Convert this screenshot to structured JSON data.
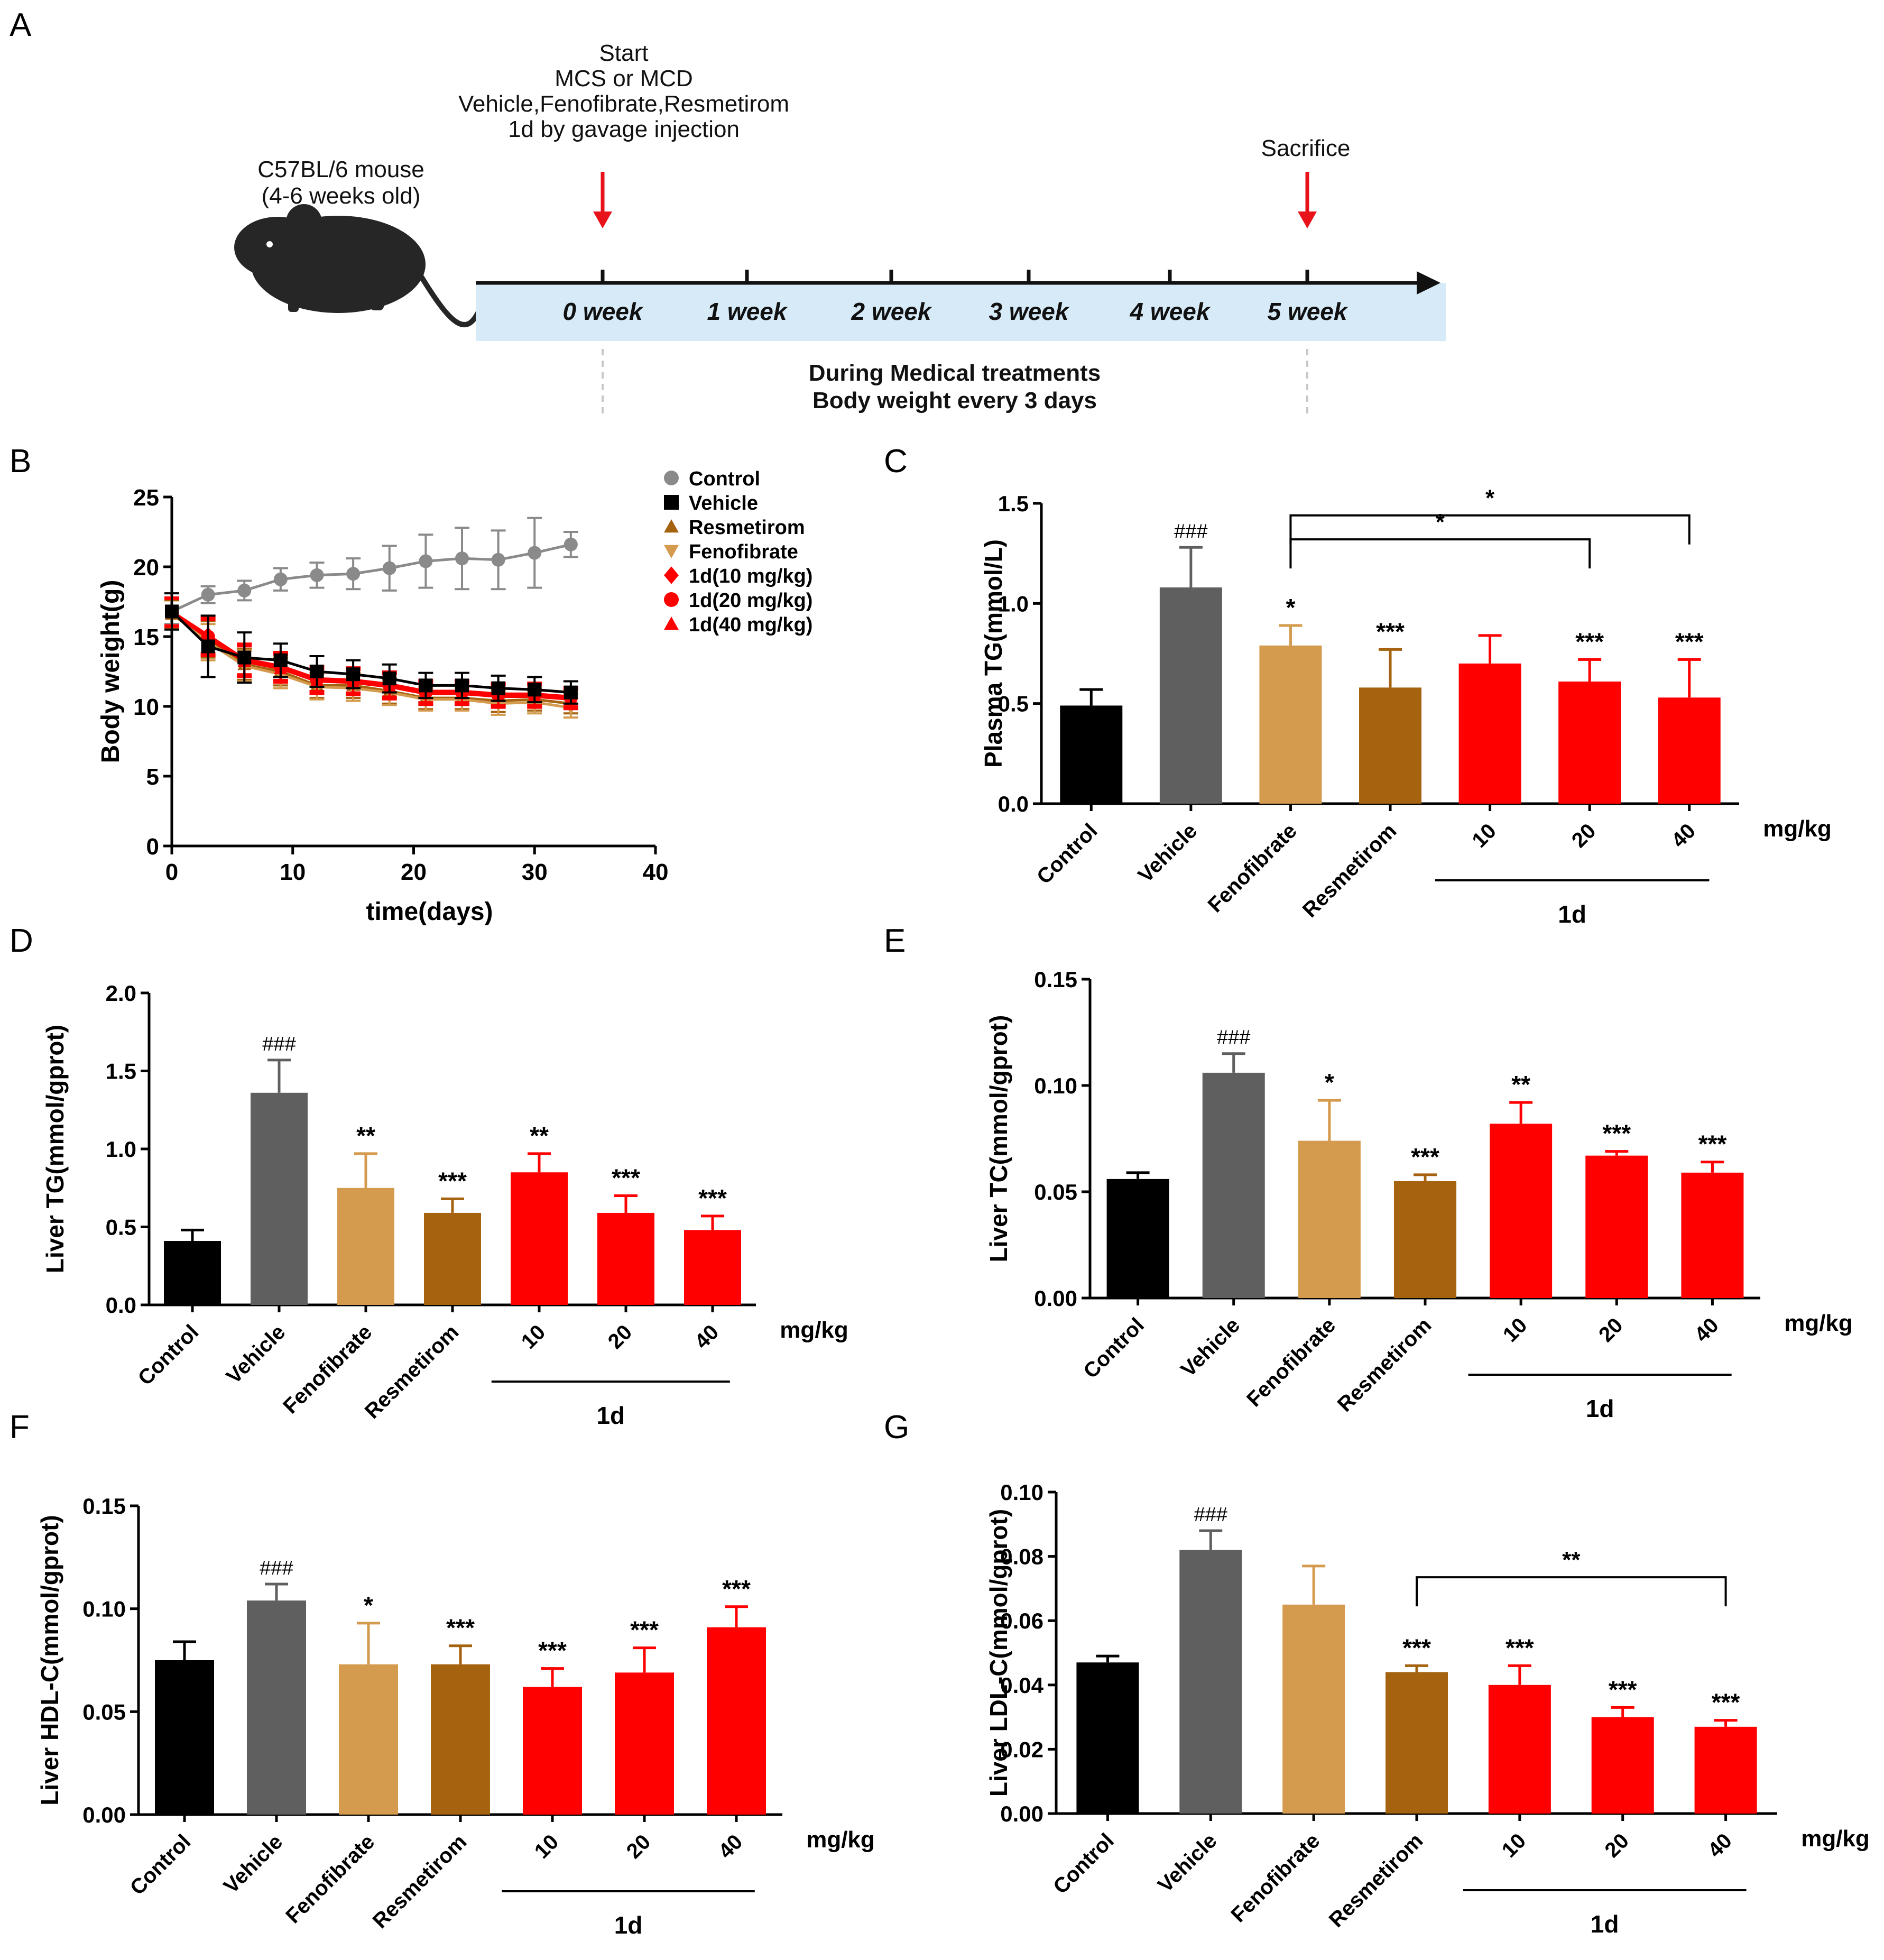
{
  "panels": {
    "A": {
      "letter": "A",
      "mouse_label": [
        "C57BL/6 mouse",
        "(4-6 weeks old)"
      ],
      "start_label": [
        "Start",
        "MCS or MCD",
        "Vehicle,Fenofibrate,Resmetirom",
        "1d  by gavage injection"
      ],
      "sacrifice_label": "Sacrifice",
      "weeks": [
        "0 week",
        "1 week",
        "2 week",
        "3 week",
        "4 week",
        "5 week"
      ],
      "treatment_note": [
        "During Medical treatments",
        "Body weight  every 3 days"
      ]
    },
    "B": {
      "letter": "B"
    },
    "C": {
      "letter": "C"
    },
    "D": {
      "letter": "D"
    },
    "E": {
      "letter": "E"
    },
    "F": {
      "letter": "F"
    },
    "G": {
      "letter": "G"
    }
  },
  "colors": {
    "Control": "#000000",
    "Vehicle": "#5f5f5f",
    "Fenofibrate": "#d49a4e",
    "Resmetirom": "#a5620f",
    "1d": "#ff0000",
    "control_line": "#8a8a8a",
    "timeline_band": "#d6eaf8",
    "arrow": "#e8121a"
  },
  "chart_data": [
    {
      "panel": "B",
      "type": "line",
      "xlabel": "time(days)",
      "ylabel": "Body weight(g)",
      "xlim": [
        0,
        40
      ],
      "ylim": [
        0,
        25
      ],
      "xticks": [
        0,
        10,
        20,
        30,
        40
      ],
      "yticks": [
        0,
        5,
        10,
        15,
        20,
        25
      ],
      "x": [
        0,
        3,
        6,
        9,
        12,
        15,
        18,
        21,
        24,
        27,
        30,
        33
      ],
      "legend_position": "top-right",
      "series": [
        {
          "name": "Control",
          "marker": "circle",
          "color": "#8a8a8a",
          "values": [
            16.8,
            18.0,
            18.3,
            19.1,
            19.4,
            19.5,
            19.9,
            20.4,
            20.6,
            20.5,
            21.0,
            21.6
          ],
          "errors": [
            0.9,
            0.6,
            0.7,
            0.8,
            0.9,
            1.1,
            1.6,
            1.9,
            2.2,
            2.1,
            2.5,
            0.9
          ]
        },
        {
          "name": "Vehicle",
          "marker": "square",
          "color": "#000000",
          "values": [
            16.8,
            14.3,
            13.5,
            13.3,
            12.5,
            12.3,
            12.0,
            11.5,
            11.5,
            11.3,
            11.2,
            11.0
          ],
          "errors": [
            1.3,
            2.2,
            1.8,
            1.2,
            1.1,
            1.0,
            1.0,
            0.9,
            0.9,
            0.9,
            0.9,
            0.8
          ]
        },
        {
          "name": "Resmetirom",
          "marker": "triangle-up",
          "color": "#a5620f",
          "values": [
            16.6,
            14.8,
            13.0,
            12.5,
            11.5,
            11.5,
            11.1,
            10.6,
            10.6,
            10.4,
            10.5,
            10.2
          ],
          "errors": [
            1.0,
            1.3,
            1.1,
            1.0,
            0.9,
            0.9,
            0.9,
            0.8,
            0.8,
            0.8,
            0.8,
            0.7
          ]
        },
        {
          "name": "Fenofibrate",
          "marker": "triangle-down",
          "color": "#d49a4e",
          "values": [
            16.7,
            14.6,
            12.9,
            12.3,
            11.4,
            11.3,
            11.0,
            10.5,
            10.5,
            10.2,
            10.3,
            9.9
          ],
          "errors": [
            1.0,
            1.3,
            1.1,
            1.0,
            0.9,
            0.9,
            0.9,
            0.8,
            0.8,
            0.8,
            0.8,
            0.7
          ]
        },
        {
          "name": "1d(10 mg/kg)",
          "marker": "diamond",
          "color": "#ff0000",
          "values": [
            16.8,
            15.1,
            13.4,
            12.9,
            12.0,
            11.9,
            11.6,
            11.1,
            11.1,
            10.9,
            10.9,
            10.7
          ],
          "errors": [
            1.0,
            1.3,
            1.1,
            1.0,
            0.9,
            0.9,
            0.9,
            0.8,
            0.8,
            0.8,
            0.8,
            0.7
          ]
        },
        {
          "name": "1d(20 mg/kg)",
          "marker": "circle",
          "color": "#ff0000",
          "values": [
            16.8,
            15.0,
            13.3,
            12.8,
            11.9,
            11.8,
            11.5,
            11.0,
            11.0,
            10.8,
            10.8,
            10.6
          ],
          "errors": [
            1.0,
            1.3,
            1.1,
            1.0,
            0.9,
            0.9,
            0.9,
            0.8,
            0.8,
            0.8,
            0.8,
            0.7
          ]
        },
        {
          "name": "1d(40 mg/kg)",
          "marker": "triangle-up",
          "color": "#ff0000",
          "values": [
            16.7,
            14.9,
            13.2,
            12.7,
            11.8,
            11.7,
            11.4,
            10.9,
            10.9,
            10.7,
            10.7,
            10.5
          ],
          "errors": [
            1.0,
            1.3,
            1.1,
            1.0,
            0.9,
            0.9,
            0.9,
            0.8,
            0.8,
            0.8,
            0.8,
            0.7
          ]
        }
      ]
    },
    {
      "panel": "C",
      "type": "bar",
      "ylabel": "Plasma TG(mmol/L)",
      "ylim": [
        0,
        1.5
      ],
      "yticks": [
        "0.0",
        "0.5",
        "1.0",
        "1.5"
      ],
      "categories": [
        "Control",
        "Vehicle",
        "Fenofibrate",
        "Resmetirom",
        "10",
        "20",
        "40"
      ],
      "bar_groups": [
        "Control",
        "Vehicle",
        "Fenofibrate",
        "Resmetirom",
        "1d",
        "1d",
        "1d"
      ],
      "values": [
        0.49,
        1.08,
        0.79,
        0.58,
        0.7,
        0.61,
        0.53
      ],
      "errors": [
        0.08,
        0.2,
        0.1,
        0.19,
        0.14,
        0.11,
        0.19
      ],
      "annotations": [
        "",
        "###",
        "*",
        "***",
        "",
        "***",
        "***"
      ],
      "unit_label": "mg/kg",
      "group_label": "1d",
      "brackets": [
        {
          "from": "Fenofibrate",
          "to": "40",
          "label": "*",
          "y": 1.44
        },
        {
          "from": "Fenofibrate",
          "to": "20",
          "label": "*",
          "y": 1.32
        }
      ]
    },
    {
      "panel": "D",
      "type": "bar",
      "ylabel": "Liver TG(mmol/gprot)",
      "ylim": [
        0,
        2.0
      ],
      "yticks": [
        "0.0",
        "0.5",
        "1.0",
        "1.5",
        "2.0"
      ],
      "categories": [
        "Control",
        "Vehicle",
        "Fenofibrate",
        "Resmetirom",
        "10",
        "20",
        "40"
      ],
      "bar_groups": [
        "Control",
        "Vehicle",
        "Fenofibrate",
        "Resmetirom",
        "1d",
        "1d",
        "1d"
      ],
      "values": [
        0.41,
        1.36,
        0.75,
        0.59,
        0.85,
        0.59,
        0.48
      ],
      "errors": [
        0.07,
        0.21,
        0.22,
        0.09,
        0.12,
        0.11,
        0.09
      ],
      "annotations": [
        "",
        "###",
        "**",
        "***",
        "**",
        "***",
        "***"
      ],
      "unit_label": "mg/kg",
      "group_label": "1d",
      "brackets": []
    },
    {
      "panel": "E",
      "type": "bar",
      "ylabel": "Liver TC(mmol/gprot)",
      "ylim": [
        0,
        0.15
      ],
      "yticks": [
        "0.00",
        "0.05",
        "0.10",
        "0.15"
      ],
      "categories": [
        "Control",
        "Vehicle",
        "Fenofibrate",
        "Resmetirom",
        "10",
        "20",
        "40"
      ],
      "bar_groups": [
        "Control",
        "Vehicle",
        "Fenofibrate",
        "Resmetirom",
        "1d",
        "1d",
        "1d"
      ],
      "values": [
        0.056,
        0.106,
        0.074,
        0.055,
        0.082,
        0.067,
        0.059
      ],
      "errors": [
        0.003,
        0.009,
        0.019,
        0.003,
        0.01,
        0.002,
        0.005
      ],
      "annotations": [
        "",
        "###",
        "*",
        "***",
        "**",
        "***",
        "***"
      ],
      "unit_label": "mg/kg",
      "group_label": "1d",
      "brackets": []
    },
    {
      "panel": "F",
      "type": "bar",
      "ylabel": "Liver HDL-C(mmol/gprot)",
      "ylim": [
        0,
        0.15
      ],
      "yticks": [
        "0.00",
        "0.05",
        "0.10",
        "0.15"
      ],
      "categories": [
        "Control",
        "Vehicle",
        "Fenofibrate",
        "Resmetirom",
        "10",
        "20",
        "40"
      ],
      "bar_groups": [
        "Control",
        "Vehicle",
        "Fenofibrate",
        "Resmetirom",
        "1d",
        "1d",
        "1d"
      ],
      "values": [
        0.075,
        0.104,
        0.073,
        0.073,
        0.062,
        0.069,
        0.091
      ],
      "errors": [
        0.009,
        0.008,
        0.02,
        0.009,
        0.009,
        0.012,
        0.01
      ],
      "annotations": [
        "",
        "###",
        "*",
        "***",
        "***",
        "***",
        "***"
      ],
      "unit_label": "mg/kg",
      "group_label": "1d",
      "brackets": []
    },
    {
      "panel": "G",
      "type": "bar",
      "ylabel": "Liver LDL-C(mmol/gprot)",
      "ylim": [
        0,
        0.1
      ],
      "yticks": [
        "0.00",
        "0.02",
        "0.04",
        "0.06",
        "0.08",
        "0.10"
      ],
      "categories": [
        "Control",
        "Vehicle",
        "Fenofibrate",
        "Resmetirom",
        "10",
        "20",
        "40"
      ],
      "bar_groups": [
        "Control",
        "Vehicle",
        "Fenofibrate",
        "Resmetirom",
        "1d",
        "1d",
        "1d"
      ],
      "values": [
        0.047,
        0.082,
        0.065,
        0.044,
        0.04,
        0.03,
        0.027
      ],
      "errors": [
        0.002,
        0.006,
        0.012,
        0.002,
        0.006,
        0.003,
        0.002
      ],
      "annotations": [
        "",
        "###",
        "",
        "***",
        "***",
        "***",
        "***"
      ],
      "unit_label": "mg/kg",
      "group_label": "1d",
      "brackets": [
        {
          "from": "Resmetirom",
          "to": "40",
          "label": "**",
          "y": 0.0735
        }
      ]
    }
  ]
}
